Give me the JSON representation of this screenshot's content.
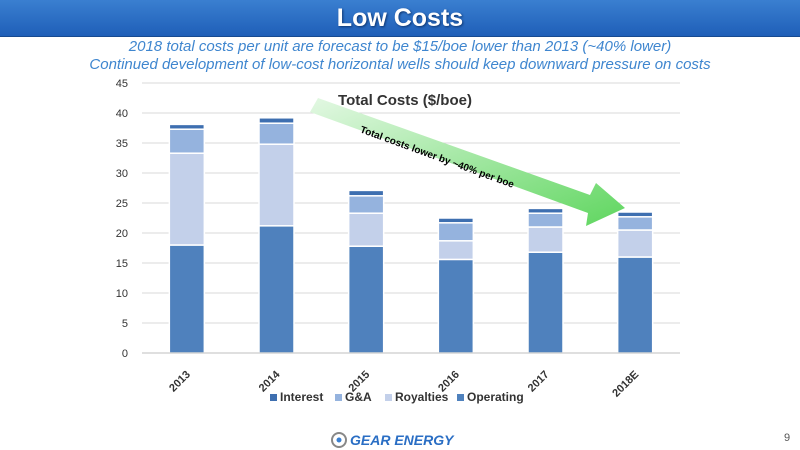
{
  "header": {
    "title": "Low Costs"
  },
  "subtitle": {
    "line1": "2018 total costs per unit are forecast to be $15/boe lower than 2013 (~40% lower)",
    "line2": "Continued development of low-cost horizontal wells should keep downward pressure on costs"
  },
  "chart_data": {
    "type": "bar",
    "stacked": true,
    "title": "Total Costs ($/boe)",
    "categories": [
      "2013",
      "2014",
      "2015",
      "2016",
      "2017",
      "2018E"
    ],
    "series": [
      {
        "name": "Operating",
        "values": [
          18.0,
          21.2,
          17.8,
          15.6,
          16.8,
          16.0
        ],
        "color": "#4f81bd"
      },
      {
        "name": "Royalties",
        "values": [
          15.3,
          13.6,
          5.5,
          3.1,
          4.2,
          4.5
        ],
        "color": "#c3d0ea"
      },
      {
        "name": "G&A",
        "values": [
          4.0,
          3.5,
          2.9,
          3.0,
          2.3,
          2.2
        ],
        "color": "#95b3de"
      },
      {
        "name": "Interest",
        "values": [
          0.8,
          0.9,
          0.9,
          0.8,
          0.8,
          0.8
        ],
        "color": "#3e6fb0"
      }
    ],
    "legend_order": [
      "Interest",
      "G&A",
      "Royalties",
      "Operating"
    ],
    "ylim": [
      0,
      45
    ],
    "yticks": [
      0,
      5,
      10,
      15,
      20,
      25,
      30,
      35,
      40,
      45
    ],
    "grid": true,
    "legend": "bottom",
    "annotation": "Total costs lower by ~40% per boe"
  },
  "footer": {
    "logo_text": "GEAR ENERGY",
    "page_number": "9"
  },
  "colors": {
    "title_bar": "#2a6ec4",
    "subtitle": "#3f86cf",
    "arrow": "#6dd96d"
  }
}
